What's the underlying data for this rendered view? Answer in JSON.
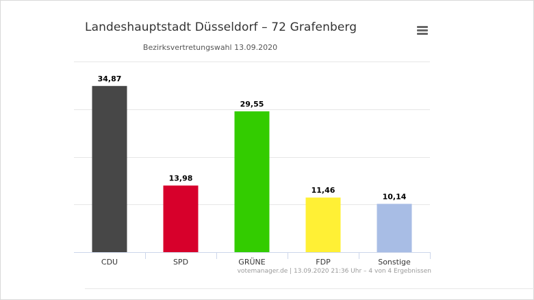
{
  "chart_data": {
    "type": "bar",
    "title": "Landeshauptstadt Düsseldorf – 72 Grafenberg",
    "subtitle": "Bezirksvertretungswahl 13.09.2020",
    "categories": [
      "CDU",
      "SPD",
      "GRÜNE",
      "FDP",
      "Sonstige"
    ],
    "values": [
      34.87,
      13.98,
      29.55,
      11.46,
      10.14
    ],
    "value_labels": [
      "34,87",
      "13,98",
      "29,55",
      "11,46",
      "10,14"
    ],
    "colors": [
      "#474747",
      "#d7002b",
      "#33cc00",
      "#fff035",
      "#a8bde5"
    ],
    "ylim": [
      0,
      40
    ],
    "grid": true,
    "legend": "none"
  },
  "credit": "votemanager.de | 13.09.2020 21:36 Uhr – 4 von 4 Ergebnissen",
  "menu_icon": "hamburger-menu-icon"
}
